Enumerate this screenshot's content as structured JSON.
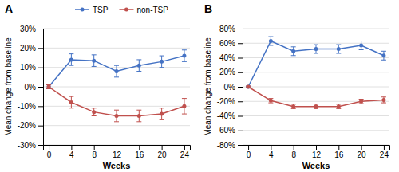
{
  "chart_data": [
    {
      "type": "line",
      "title": "A",
      "xlabel": "Weeks",
      "ylabel": "Mean change from baseline",
      "x": [
        0,
        4,
        8,
        12,
        16,
        20,
        24
      ],
      "series": [
        {
          "name": "TSP",
          "color": "#4472C4",
          "marker": "circle",
          "values": [
            0,
            14,
            13.5,
            8,
            11,
            13,
            16
          ],
          "errors": [
            1,
            3,
            3,
            3,
            3,
            3,
            3
          ]
        },
        {
          "name": "non-TSP",
          "color": "#C0504D",
          "marker": "circle",
          "values": [
            0,
            -8,
            -13,
            -15,
            -15,
            -14,
            -10
          ],
          "errors": [
            1,
            3,
            2,
            3,
            3,
            3,
            4
          ]
        }
      ],
      "xlim": [
        -1,
        25
      ],
      "xticks": [
        0,
        4,
        8,
        12,
        16,
        20,
        24
      ],
      "ylim": [
        -30,
        30
      ],
      "yticks": [
        {
          "value": -30,
          "label": "-30%"
        },
        {
          "value": -20,
          "label": "-20%"
        },
        {
          "value": -10,
          "label": "-10%"
        },
        {
          "value": 0,
          "label": "0%"
        },
        {
          "value": 10,
          "label": "10%"
        },
        {
          "value": 20,
          "label": "20%"
        },
        {
          "value": 30,
          "label": "30%"
        }
      ],
      "grid": true,
      "legend": "top"
    },
    {
      "type": "line",
      "title": "B",
      "xlabel": "Weeks",
      "ylabel": "Mean change from baseline",
      "x": [
        0,
        4,
        8,
        12,
        16,
        20,
        24
      ],
      "series": [
        {
          "name": "TSP",
          "color": "#4472C4",
          "marker": "circle",
          "values": [
            0,
            63,
            49,
            52,
            52,
            57,
            43
          ],
          "errors": [
            1,
            6,
            6,
            6,
            6,
            6,
            6
          ]
        },
        {
          "name": "non-TSP",
          "color": "#C0504D",
          "marker": "circle",
          "values": [
            0,
            -19,
            -27,
            -27,
            -27,
            -20,
            -18
          ],
          "errors": [
            1,
            3,
            3,
            3,
            3,
            3,
            4
          ]
        }
      ],
      "xlim": [
        -1,
        25
      ],
      "xticks": [
        0,
        4,
        8,
        12,
        16,
        20,
        24
      ],
      "ylim": [
        -80,
        80
      ],
      "yticks": [
        {
          "value": -80,
          "label": "-80%"
        },
        {
          "value": -60,
          "label": "-60%"
        },
        {
          "value": -40,
          "label": "-40%"
        },
        {
          "value": -20,
          "label": "-20%"
        },
        {
          "value": 0,
          "label": "0%"
        },
        {
          "value": 20,
          "label": "20%"
        },
        {
          "value": 40,
          "label": "40%"
        },
        {
          "value": 60,
          "label": "60%"
        },
        {
          "value": 80,
          "label": "80%"
        }
      ],
      "grid": true
    }
  ]
}
